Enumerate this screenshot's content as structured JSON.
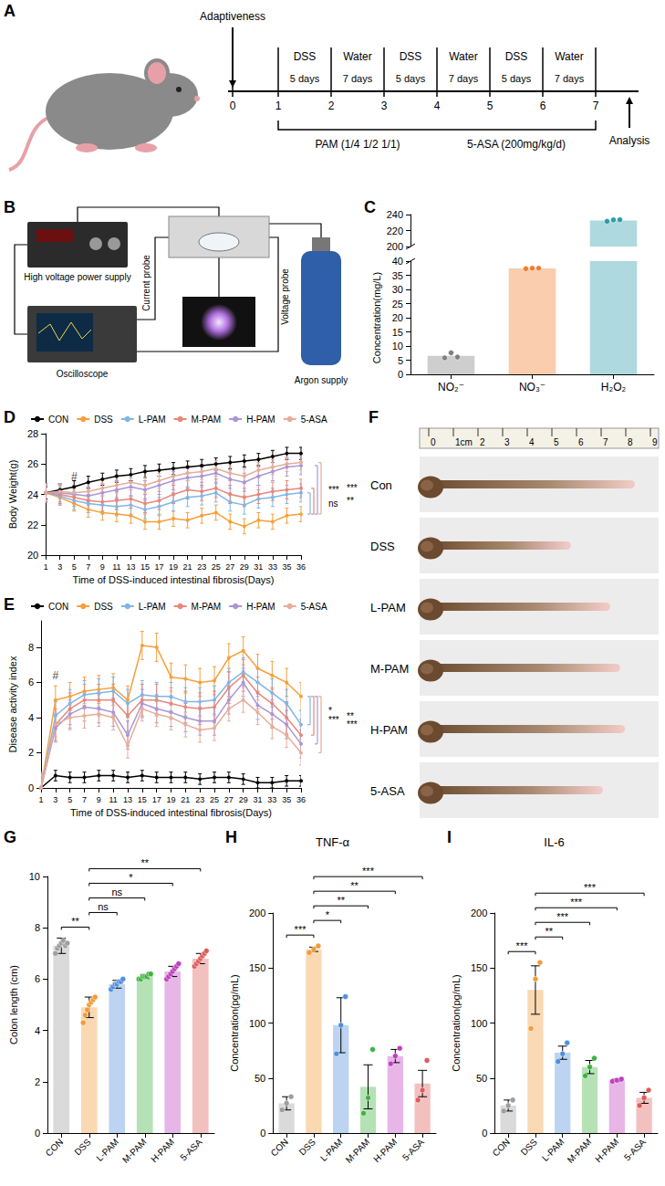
{
  "diagrams": [
    {
      "panel": "A",
      "label_top": "Adaptiveness",
      "ticks": [
        0,
        1,
        2,
        3,
        4,
        5,
        6,
        7
      ],
      "segments": [
        {
          "label": "DSS",
          "duration": "5 days"
        },
        {
          "label": "Water",
          "duration": "7 days"
        },
        {
          "label": "DSS",
          "duration": "5 days"
        },
        {
          "label": "Water",
          "duration": "7 days"
        },
        {
          "label": "DSS",
          "duration": "5 days"
        },
        {
          "label": "Water",
          "duration": "7 days"
        }
      ],
      "treatments": [
        "PAM (1/4 1/2 1/1)",
        "5-ASA (200mg/kg/d)"
      ],
      "end_label": "Analysis"
    },
    {
      "panel": "B",
      "high_voltage": "High voltage power supply",
      "oscilloscope": "Oscilloscope",
      "current_probe": "Current probe",
      "voltage_probe": "Voltage probe",
      "gas": "Argon supply"
    },
    {
      "panel": "F",
      "ruler_ticks": [
        0,
        {
          "value": 1,
          "label": "1cm"
        },
        2,
        3,
        4,
        5,
        6,
        7,
        8,
        9
      ],
      "rows": [
        {
          "label": "Con",
          "length": 8.2
        },
        {
          "label": "DSS",
          "length": 5.6
        },
        {
          "label": "L-PAM",
          "length": 7.2
        },
        {
          "label": "M-PAM",
          "length": 7.6
        },
        {
          "label": "H-PAM",
          "length": 7.8
        },
        {
          "label": "5-ASA",
          "length": 6.9
        }
      ]
    }
  ],
  "chart_data": [
    {
      "panel": "C",
      "type": "bar",
      "categories": [
        "NO₂⁻",
        "NO₃⁻",
        "H₂O₂"
      ],
      "values": [
        6.5,
        37.4,
        232.7
      ],
      "points": [
        [
          5.8,
          7.6,
          6.1
        ],
        [
          37.3,
          37.5,
          37.5
        ],
        [
          231.5,
          233.3,
          233.5
        ]
      ],
      "colors": [
        "#7f7f7f",
        "#f07c2a",
        "#2b9ca8"
      ],
      "y_label": "Concentration(mg/L)",
      "ylim_lower": [
        0,
        40
      ],
      "yticks_lower": [
        0,
        5,
        10,
        15,
        20,
        25,
        30,
        35,
        40
      ],
      "ylim_upper": [
        200,
        240
      ],
      "yticks_upper": [
        200,
        220,
        240
      ],
      "grid": false
    },
    {
      "panel": "D",
      "type": "line",
      "x_label": "Time of DSS-induced intestinal fibrosis(Days)",
      "y_label": "Body Weight(g)",
      "categories": [
        1,
        3,
        5,
        7,
        9,
        11,
        13,
        15,
        17,
        19,
        21,
        23,
        25,
        27,
        29,
        31,
        33,
        35,
        36
      ],
      "ylim": [
        20,
        28
      ],
      "yticks": [
        20,
        22,
        24,
        26,
        28
      ],
      "grid": false,
      "legend": "top",
      "series": [
        {
          "name": "CON",
          "color": "#000000",
          "error": 0.4,
          "values": [
            24.1,
            24.3,
            24.5,
            24.8,
            25.0,
            25.2,
            25.3,
            25.5,
            25.6,
            25.7,
            25.8,
            25.9,
            26.0,
            26.1,
            26.2,
            26.3,
            26.5,
            26.7,
            26.7
          ]
        },
        {
          "name": "DSS",
          "color": "#f5a03c",
          "error": 0.5,
          "values": [
            24.1,
            23.8,
            23.4,
            23.0,
            22.8,
            22.7,
            22.6,
            22.2,
            22.2,
            22.4,
            22.3,
            22.6,
            22.8,
            22.2,
            21.9,
            22.3,
            22.2,
            22.6,
            22.7
          ]
        },
        {
          "name": "L-PAM",
          "color": "#7fb6e6",
          "error": 0.6,
          "values": [
            24.1,
            23.9,
            23.6,
            23.4,
            23.3,
            23.2,
            23.3,
            23.0,
            23.2,
            23.5,
            23.8,
            23.9,
            24.1,
            23.5,
            23.3,
            23.7,
            23.8,
            24.0,
            24.1
          ]
        },
        {
          "name": "M-PAM",
          "color": "#e8877a",
          "error": 0.6,
          "values": [
            24.1,
            24.0,
            23.8,
            23.6,
            23.5,
            23.6,
            23.7,
            23.4,
            23.6,
            24.0,
            24.3,
            24.2,
            24.4,
            24.0,
            23.8,
            24.0,
            24.2,
            24.3,
            24.4
          ]
        },
        {
          "name": "H-PAM",
          "color": "#a996d6",
          "error": 0.6,
          "values": [
            24.1,
            24.1,
            24.0,
            23.9,
            24.1,
            24.3,
            24.5,
            24.3,
            24.6,
            24.9,
            25.1,
            25.2,
            25.4,
            25.0,
            24.8,
            25.2,
            25.5,
            25.8,
            25.9
          ]
        },
        {
          "name": "5-ASA",
          "color": "#e6ad97",
          "error": 0.5,
          "values": [
            24.1,
            24.2,
            24.1,
            24.2,
            24.4,
            24.6,
            24.8,
            24.6,
            24.9,
            25.2,
            25.4,
            25.5,
            25.7,
            25.4,
            25.2,
            25.6,
            25.8,
            26.0,
            26.1
          ]
        }
      ],
      "annotations": [
        {
          "text": "#",
          "x": 5,
          "y": 25.2
        }
      ],
      "significance": {
        "reference": "DSS",
        "marks": [
          {
            "series": "L-PAM",
            "text": "ns"
          },
          {
            "series": "M-PAM",
            "text": "**"
          },
          {
            "series": "H-PAM",
            "text": "***"
          },
          {
            "series": "5-ASA",
            "text": "***"
          }
        ]
      }
    },
    {
      "panel": "E",
      "type": "line",
      "x_label": "Time of DSS-induced intestinal fibrosis(Days)",
      "y_label": "Disease activity index",
      "categories": [
        1,
        3,
        5,
        7,
        9,
        11,
        13,
        15,
        17,
        19,
        21,
        23,
        25,
        27,
        29,
        31,
        33,
        35,
        36
      ],
      "ylim": [
        0,
        9.5
      ],
      "yticks": [
        0,
        2,
        4,
        6,
        8
      ],
      "grid": false,
      "legend": "top",
      "series": [
        {
          "name": "CON",
          "color": "#000000",
          "error": 0.3,
          "values": [
            0,
            0.7,
            0.6,
            0.6,
            0.7,
            0.7,
            0.6,
            0.7,
            0.6,
            0.6,
            0.6,
            0.5,
            0.6,
            0.6,
            0.5,
            0.3,
            0.3,
            0.4,
            0.4
          ]
        },
        {
          "name": "DSS",
          "color": "#f5a03c",
          "error": 0.8,
          "values": [
            0,
            5.0,
            5.2,
            5.5,
            5.6,
            5.7,
            5.0,
            8.1,
            8.0,
            6.3,
            6.2,
            6.0,
            6.1,
            7.4,
            7.8,
            6.8,
            6.4,
            6.0,
            5.2
          ]
        },
        {
          "name": "L-PAM",
          "color": "#7fb6e6",
          "error": 0.8,
          "values": [
            0,
            4.1,
            4.8,
            5.3,
            5.4,
            5.5,
            4.8,
            5.3,
            5.2,
            5.2,
            4.9,
            4.9,
            5.0,
            6.0,
            6.6,
            6.0,
            5.4,
            4.8,
            3.6
          ]
        },
        {
          "name": "M-PAM",
          "color": "#e8877a",
          "error": 0.9,
          "values": [
            0,
            3.6,
            4.5,
            5.0,
            5.0,
            5.0,
            4.1,
            5.0,
            5.0,
            4.8,
            4.6,
            4.5,
            4.6,
            5.7,
            6.4,
            5.4,
            4.8,
            4.0,
            3.0
          ]
        },
        {
          "name": "H-PAM",
          "color": "#a996d6",
          "error": 0.8,
          "values": [
            0,
            3.4,
            4.2,
            4.6,
            4.5,
            4.3,
            3.0,
            4.8,
            4.5,
            4.3,
            4.0,
            3.8,
            3.8,
            5.0,
            6.0,
            4.7,
            4.2,
            3.6,
            2.5
          ]
        },
        {
          "name": "5-ASA",
          "color": "#e6ad97",
          "error": 0.7,
          "values": [
            0,
            3.6,
            4.0,
            4.1,
            4.2,
            4.0,
            2.4,
            4.5,
            4.2,
            4.0,
            3.6,
            3.3,
            3.4,
            4.5,
            5.0,
            4.3,
            3.5,
            3.0,
            2.0
          ]
        }
      ],
      "annotations": [
        {
          "text": "#",
          "x": 3,
          "y": 6.4
        }
      ],
      "significance": {
        "reference": "DSS",
        "marks": [
          {
            "series": "L-PAM",
            "text": "*"
          },
          {
            "series": "M-PAM",
            "text": "**"
          },
          {
            "series": "H-PAM",
            "text": "***"
          },
          {
            "series": "5-ASA",
            "text": "***"
          }
        ]
      }
    },
    {
      "panel": "G",
      "type": "bar",
      "categories": [
        "CON",
        "DSS",
        "L-PAM",
        "M-PAM",
        "H-PAM",
        "5-ASA"
      ],
      "values": [
        7.3,
        4.9,
        5.8,
        6.1,
        6.3,
        6.8
      ],
      "errors": [
        0.3,
        0.4,
        0.15,
        0.08,
        0.2,
        0.2
      ],
      "points": [
        [
          7.0,
          7.2,
          7.3,
          7.4,
          7.5,
          7.3,
          7.4
        ],
        [
          4.3,
          4.6,
          4.8,
          5.0,
          5.1,
          5.2,
          5.3
        ],
        [
          5.6,
          5.7,
          5.8,
          5.8,
          5.9,
          5.9,
          6.0
        ],
        [
          6.0,
          6.0,
          6.1,
          6.1,
          6.1,
          6.2,
          6.2
        ],
        [
          6.0,
          6.1,
          6.2,
          6.3,
          6.4,
          6.5,
          6.6
        ],
        [
          6.5,
          6.6,
          6.7,
          6.8,
          6.9,
          7.0,
          7.1
        ]
      ],
      "colors": [
        "#9e9e9e",
        "#f39c35",
        "#4f8fdc",
        "#3cb33c",
        "#c03fc0",
        "#e05a5a"
      ],
      "y_label": "Colon length (cm)",
      "ylim": [
        0,
        10
      ],
      "yticks": [
        0,
        2,
        4,
        6,
        8,
        10
      ],
      "grid": false,
      "brackets": [
        {
          "from": "CON",
          "to": "DSS",
          "text": "**"
        },
        {
          "from": "DSS",
          "to": "L-PAM",
          "text": "ns"
        },
        {
          "from": "DSS",
          "to": "M-PAM",
          "text": "ns"
        },
        {
          "from": "DSS",
          "to": "H-PAM",
          "text": "*"
        },
        {
          "from": "DSS",
          "to": "5-ASA",
          "text": "**"
        }
      ]
    },
    {
      "panel": "H",
      "type": "bar",
      "title": "TNF-α",
      "categories": [
        "CON",
        "DSS",
        "L-PAM",
        "M-PAM",
        "H-PAM",
        "5-ASA"
      ],
      "values": [
        27,
        167,
        98,
        42,
        70,
        45
      ],
      "errors": [
        6,
        2,
        25,
        20,
        6,
        12
      ],
      "points": [
        [
          21,
          27,
          33
        ],
        [
          164,
          167,
          170
        ],
        [
          72,
          98,
          124
        ],
        [
          18,
          32,
          76
        ],
        [
          63,
          70,
          77
        ],
        [
          30,
          39,
          66
        ]
      ],
      "colors": [
        "#9e9e9e",
        "#f39c35",
        "#4f8fdc",
        "#3cb33c",
        "#c03fc0",
        "#e05a5a"
      ],
      "y_label": "Concentration(pg/mL)",
      "ylim": [
        0,
        200
      ],
      "yticks": [
        0,
        50,
        100,
        150,
        200
      ],
      "grid": false,
      "brackets": [
        {
          "from": "CON",
          "to": "DSS",
          "text": "***"
        },
        {
          "from": "DSS",
          "to": "L-PAM",
          "text": "*"
        },
        {
          "from": "DSS",
          "to": "M-PAM",
          "text": "**"
        },
        {
          "from": "DSS",
          "to": "H-PAM",
          "text": "**"
        },
        {
          "from": "DSS",
          "to": "5-ASA",
          "text": "***"
        }
      ]
    },
    {
      "panel": "I",
      "type": "bar",
      "title": "IL-6",
      "categories": [
        "CON",
        "DSS",
        "L-PAM",
        "M-PAM",
        "H-PAM",
        "5-ASA"
      ],
      "values": [
        25,
        130,
        73,
        60,
        48,
        32
      ],
      "errors": [
        5,
        22,
        6,
        6,
        1,
        5
      ],
      "points": [
        [
          20,
          25,
          30
        ],
        [
          95,
          140,
          155
        ],
        [
          65,
          72,
          82
        ],
        [
          52,
          60,
          68
        ],
        [
          47,
          48,
          49
        ],
        [
          25,
          32,
          39
        ]
      ],
      "colors": [
        "#9e9e9e",
        "#f39c35",
        "#4f8fdc",
        "#3cb33c",
        "#c03fc0",
        "#e05a5a"
      ],
      "y_label": "Concentration(pg/mL)",
      "ylim": [
        0,
        200
      ],
      "yticks": [
        0,
        50,
        100,
        150,
        200
      ],
      "grid": false,
      "brackets": [
        {
          "from": "CON",
          "to": "DSS",
          "text": "***"
        },
        {
          "from": "DSS",
          "to": "L-PAM",
          "text": "**"
        },
        {
          "from": "DSS",
          "to": "M-PAM",
          "text": "***"
        },
        {
          "from": "DSS",
          "to": "H-PAM",
          "text": "***"
        },
        {
          "from": "DSS",
          "to": "5-ASA",
          "text": "***"
        }
      ]
    }
  ]
}
